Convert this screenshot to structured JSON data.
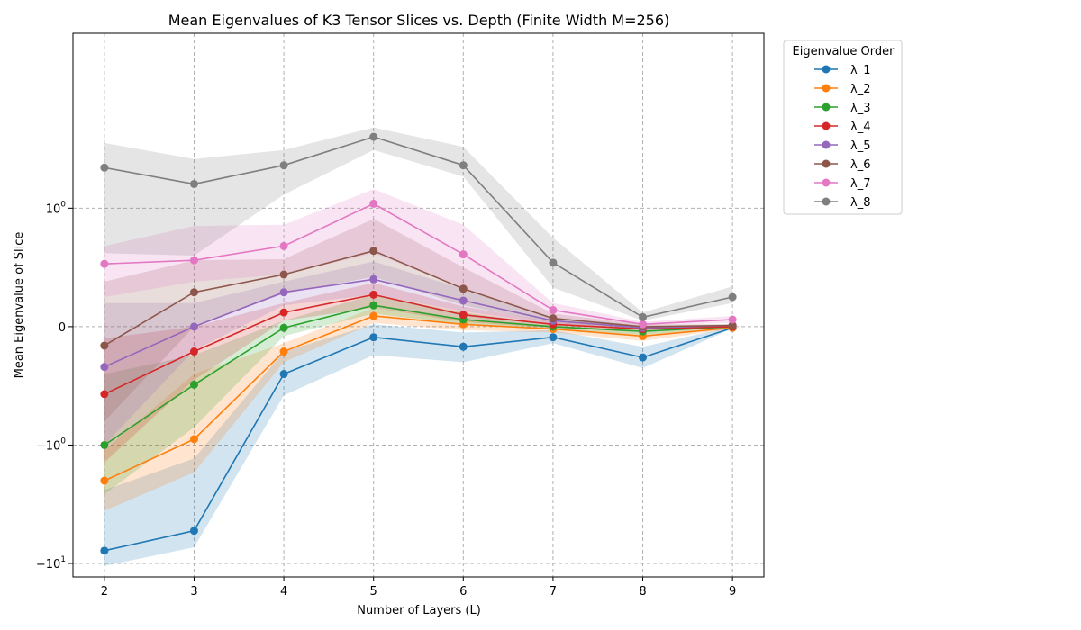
{
  "chart_data": {
    "type": "line",
    "title": "Mean Eigenvalues of K3 Tensor Slices vs. Depth (Finite Width M=256)",
    "xlabel": "Number of Layers (L)",
    "ylabel": "Mean Eigenvalue of Slice",
    "yscale": "symlog",
    "x": [
      2,
      3,
      4,
      5,
      6,
      7,
      8,
      9
    ],
    "xlim": [
      1.65,
      9.35
    ],
    "ylim": [
      -13,
      30
    ],
    "x_ticks": [
      2,
      3,
      4,
      5,
      6,
      7,
      8,
      9
    ],
    "y_ticks": [
      {
        "value": 1,
        "label": "10^0"
      },
      {
        "value": 0,
        "label": "0"
      },
      {
        "value": -1,
        "label": "-10^0"
      },
      {
        "value": -10,
        "label": "-10^1"
      }
    ],
    "grid": true,
    "legend": {
      "title": "Eigenvalue Order",
      "position": "outside-right"
    },
    "series": [
      {
        "name": "λ_1",
        "color": "#1f77b4",
        "values": [
          -7.8,
          -5.3,
          -0.4,
          -0.09,
          -0.17,
          -0.09,
          -0.26,
          -0.01
        ],
        "lower": [
          -10.5,
          -7.3,
          -0.58,
          -0.24,
          -0.3,
          -0.14,
          -0.35,
          -0.015
        ],
        "upper": [
          -2.4,
          -1.3,
          -0.21,
          0.02,
          -0.05,
          -0.03,
          -0.17,
          0.0
        ]
      },
      {
        "name": "λ_2",
        "color": "#ff7f0e",
        "values": [
          -2.0,
          -0.95,
          -0.21,
          0.09,
          0.02,
          -0.02,
          -0.08,
          -0.01
        ],
        "lower": [
          -3.6,
          -1.7,
          -0.3,
          0.03,
          -0.03,
          -0.05,
          -0.12,
          -0.02
        ],
        "upper": [
          -1.1,
          -0.4,
          -0.14,
          0.16,
          0.06,
          0.0,
          -0.05,
          0.0
        ]
      },
      {
        "name": "λ_3",
        "color": "#2ca02c",
        "values": [
          -1.0,
          -0.49,
          -0.01,
          0.18,
          0.06,
          0.0,
          -0.04,
          0.0
        ],
        "lower": [
          -2.6,
          -0.85,
          -0.08,
          0.11,
          0.02,
          -0.03,
          -0.07,
          -0.01
        ],
        "upper": [
          -0.4,
          -0.24,
          0.05,
          0.27,
          0.12,
          0.02,
          -0.02,
          0.01
        ]
      },
      {
        "name": "λ_4",
        "color": "#d62728",
        "values": [
          -0.57,
          -0.21,
          0.12,
          0.27,
          0.1,
          0.02,
          -0.02,
          0.0
        ],
        "lower": [
          -1.4,
          -0.45,
          0.05,
          0.16,
          0.04,
          -0.01,
          -0.04,
          -0.01
        ],
        "upper": [
          -0.1,
          0.0,
          0.2,
          0.37,
          0.17,
          0.04,
          0.0,
          0.01
        ]
      },
      {
        "name": "λ_5",
        "color": "#9467bd",
        "values": [
          -0.34,
          0.0,
          0.29,
          0.4,
          0.22,
          0.05,
          -0.01,
          0.01
        ],
        "lower": [
          -1.0,
          -0.2,
          0.18,
          0.27,
          0.13,
          0.02,
          -0.03,
          0.0
        ],
        "upper": [
          0.2,
          0.2,
          0.38,
          0.55,
          0.32,
          0.08,
          0.01,
          0.02
        ]
      },
      {
        "name": "λ_6",
        "color": "#8c564b",
        "values": [
          -0.16,
          0.29,
          0.44,
          0.64,
          0.32,
          0.07,
          0.0,
          0.01
        ],
        "lower": [
          -0.8,
          0.0,
          0.28,
          0.42,
          0.18,
          0.03,
          -0.02,
          0.0
        ],
        "upper": [
          0.38,
          0.56,
          0.57,
          0.91,
          0.5,
          0.11,
          0.02,
          0.02
        ]
      },
      {
        "name": "λ_7",
        "color": "#e377c2",
        "values": [
          0.53,
          0.56,
          0.68,
          1.09,
          0.61,
          0.14,
          0.02,
          0.06
        ],
        "lower": [
          0.25,
          0.38,
          0.44,
          0.62,
          0.32,
          0.08,
          0.01,
          0.03
        ],
        "upper": [
          0.68,
          0.85,
          0.86,
          1.45,
          0.86,
          0.2,
          0.04,
          0.09
        ]
      },
      {
        "name": "λ_8",
        "color": "#7f7f7f",
        "values": [
          2.2,
          1.6,
          2.3,
          4.0,
          2.3,
          0.54,
          0.08,
          0.25
        ],
        "lower": [
          0.62,
          0.6,
          1.3,
          3.1,
          1.85,
          0.33,
          0.05,
          0.2
        ],
        "upper": [
          3.55,
          2.6,
          3.1,
          4.8,
          3.3,
          0.75,
          0.12,
          0.34
        ]
      }
    ]
  }
}
